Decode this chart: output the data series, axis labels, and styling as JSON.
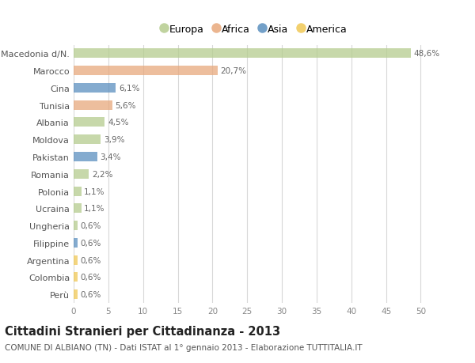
{
  "categories": [
    "Macedonia d/N.",
    "Marocco",
    "Cina",
    "Tunisia",
    "Albania",
    "Moldova",
    "Pakistan",
    "Romania",
    "Polonia",
    "Ucraina",
    "Ungheria",
    "Filippine",
    "Argentina",
    "Colombia",
    "Perù"
  ],
  "values": [
    48.6,
    20.7,
    6.1,
    5.6,
    4.5,
    3.9,
    3.4,
    2.2,
    1.1,
    1.1,
    0.6,
    0.6,
    0.6,
    0.6,
    0.6
  ],
  "labels": [
    "48,6%",
    "20,7%",
    "6,1%",
    "5,6%",
    "4,5%",
    "3,9%",
    "3,4%",
    "2,2%",
    "1,1%",
    "1,1%",
    "0,6%",
    "0,6%",
    "0,6%",
    "0,6%",
    "0,6%"
  ],
  "colors": [
    "#b5cc8e",
    "#e8a87c",
    "#5b8fbf",
    "#e8a87c",
    "#b5cc8e",
    "#b5cc8e",
    "#5b8fbf",
    "#b5cc8e",
    "#b5cc8e",
    "#b5cc8e",
    "#b5cc8e",
    "#5b8fbf",
    "#f0c855",
    "#f0c855",
    "#f0c855"
  ],
  "legend_labels": [
    "Europa",
    "Africa",
    "Asia",
    "America"
  ],
  "legend_colors": [
    "#b5cc8e",
    "#e8a87c",
    "#5b8fbf",
    "#f0c855"
  ],
  "title": "Cittadini Stranieri per Cittadinanza - 2013",
  "subtitle": "COMUNE DI ALBIANO (TN) - Dati ISTAT al 1° gennaio 2013 - Elaborazione TUTTITALIA.IT",
  "xlim": [
    0,
    52
  ],
  "xticks": [
    0,
    5,
    10,
    15,
    20,
    25,
    30,
    35,
    40,
    45,
    50
  ],
  "bg_color": "#ffffff",
  "grid_color": "#d8d8d8",
  "bar_height": 0.55,
  "label_fontsize": 7.5,
  "tick_fontsize": 7.5,
  "ytick_fontsize": 8,
  "title_fontsize": 10.5,
  "subtitle_fontsize": 7.5
}
